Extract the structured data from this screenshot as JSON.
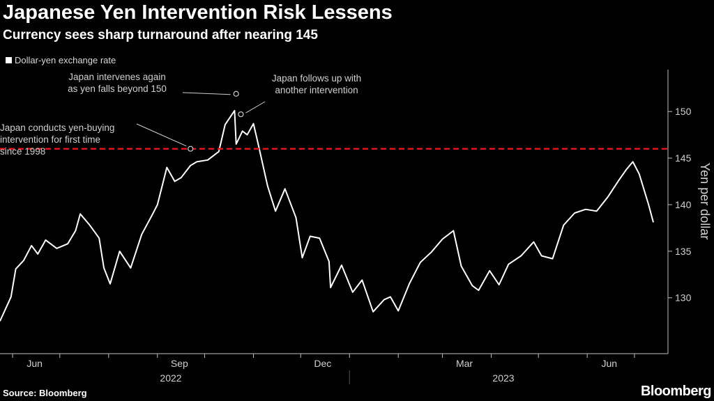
{
  "header": {
    "title": "Japanese Yen Intervention Risk Lessens",
    "subtitle": "Currency sees sharp turnaround after nearing 145"
  },
  "footer": {
    "source": "Source: Bloomberg",
    "brand": "Bloomberg"
  },
  "colors": {
    "background": "#000000",
    "series": "#ffffff",
    "reference_line": "#e3121b"
  },
  "chart_data": {
    "type": "line",
    "title": "Japanese Yen Intervention Risk Lessens",
    "subtitle": "Currency sees sharp turnaround after nearing 145",
    "ylabel": "Yen per dollar",
    "xlabel": "",
    "ylim": [
      124,
      154.5
    ],
    "y_ticks": [
      130,
      135,
      140,
      145,
      150
    ],
    "y_axis_side": "right",
    "grid": false,
    "legend": [
      "Dollar-yen exchange rate"
    ],
    "x_ticks": [
      "Jun",
      "Sep",
      "Dec",
      "Mar",
      "Jun"
    ],
    "x_year_labels": [
      "2022",
      "2023"
    ],
    "reference_line": {
      "y": 146,
      "style": "dashed"
    },
    "series": [
      {
        "name": "Dollar-yen exchange rate",
        "x": [
          "2022-05-24",
          "2022-05-31",
          "2022-06-03",
          "2022-06-08",
          "2022-06-13",
          "2022-06-17",
          "2022-06-22",
          "2022-06-29",
          "2022-07-06",
          "2022-07-11",
          "2022-07-14",
          "2022-07-20",
          "2022-07-26",
          "2022-07-29",
          "2022-08-02",
          "2022-08-08",
          "2022-08-15",
          "2022-08-22",
          "2022-08-29",
          "2022-09-01",
          "2022-09-07",
          "2022-09-12",
          "2022-09-16",
          "2022-09-22",
          "2022-09-26",
          "2022-10-03",
          "2022-10-10",
          "2022-10-14",
          "2022-10-20",
          "2022-10-21",
          "2022-10-25",
          "2022-10-28",
          "2022-11-01",
          "2022-11-04",
          "2022-11-10",
          "2022-11-15",
          "2022-11-21",
          "2022-11-28",
          "2022-12-02",
          "2022-12-07",
          "2022-12-13",
          "2022-12-19",
          "2022-12-20",
          "2022-12-27",
          "2023-01-03",
          "2023-01-09",
          "2023-01-16",
          "2023-01-23",
          "2023-01-27",
          "2023-02-01",
          "2023-02-08",
          "2023-02-15",
          "2023-02-22",
          "2023-03-01",
          "2023-03-08",
          "2023-03-13",
          "2023-03-20",
          "2023-03-24",
          "2023-03-31",
          "2023-04-06",
          "2023-04-12",
          "2023-04-20",
          "2023-04-28",
          "2023-05-03",
          "2023-05-10",
          "2023-05-17",
          "2023-05-24",
          "2023-05-31",
          "2023-06-07",
          "2023-06-14",
          "2023-06-21",
          "2023-06-26",
          "2023-06-30",
          "2023-07-04",
          "2023-07-10",
          "2023-07-13"
        ],
        "values": [
          127.5,
          130.1,
          133.1,
          134.0,
          135.6,
          134.7,
          136.2,
          135.3,
          135.8,
          137.2,
          139.0,
          137.8,
          136.4,
          133.2,
          131.5,
          135.0,
          133.2,
          136.8,
          139.0,
          140.0,
          144.0,
          142.5,
          142.9,
          144.2,
          144.6,
          144.8,
          145.7,
          148.6,
          150.1,
          146.5,
          147.9,
          147.5,
          148.7,
          146.5,
          142.0,
          139.3,
          141.7,
          138.6,
          134.3,
          136.6,
          136.4,
          133.9,
          131.1,
          133.5,
          130.6,
          131.9,
          128.5,
          129.8,
          130.1,
          128.6,
          131.5,
          133.8,
          134.9,
          136.3,
          137.2,
          133.4,
          131.3,
          130.8,
          132.9,
          131.4,
          133.6,
          134.5,
          136.0,
          134.5,
          134.2,
          137.8,
          139.1,
          139.5,
          139.3,
          140.8,
          142.6,
          143.8,
          144.6,
          143.3,
          140.0,
          138.1
        ],
        "annotation_points": [
          {
            "date": "2022-09-22",
            "value": 146.0
          },
          {
            "date": "2022-10-21",
            "value": 151.9
          },
          {
            "date": "2022-10-24",
            "value": 149.7
          }
        ]
      }
    ],
    "annotations": [
      {
        "lines": [
          "Japan conducts yen-buying",
          "intervention for first time",
          "since 1998"
        ]
      },
      {
        "lines": [
          "Japan intervenes again",
          "as yen falls beyond 150"
        ]
      },
      {
        "lines": [
          "Japan follows up with",
          "another intervention"
        ]
      }
    ]
  }
}
